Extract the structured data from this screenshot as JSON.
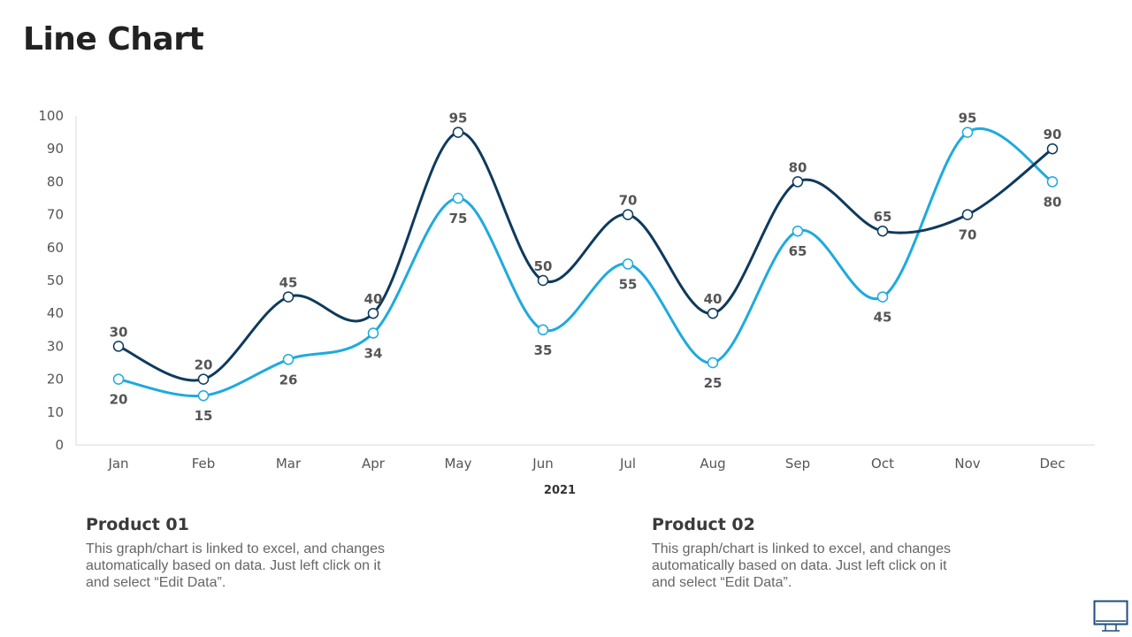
{
  "page": {
    "title": "Line Chart"
  },
  "chart_data": {
    "type": "line",
    "categories": [
      "Jan",
      "Feb",
      "Mar",
      "Apr",
      "May",
      "Jun",
      "Jul",
      "Aug",
      "Sep",
      "Oct",
      "Nov",
      "Dec"
    ],
    "xlabel": "2021",
    "ylabel": "",
    "ylim": [
      0,
      100
    ],
    "yticks": [
      0,
      10,
      20,
      30,
      40,
      50,
      60,
      70,
      80,
      90,
      100
    ],
    "grid": false,
    "series": [
      {
        "values": [
          30,
          20,
          45,
          40,
          95,
          50,
          70,
          40,
          80,
          65,
          70,
          90
        ],
        "color": "#0e3a5c"
      },
      {
        "values": [
          20,
          15,
          26,
          34,
          75,
          35,
          55,
          25,
          65,
          45,
          95,
          80
        ],
        "color": "#1eaadd"
      }
    ]
  },
  "products": [
    {
      "title": "Product 01",
      "text": "This graph/chart is linked to excel, and changes automatically based on data. Just left click on it and select “Edit Data”."
    },
    {
      "title": "Product 02",
      "text": "This graph/chart is linked to excel, and changes automatically based on data. Just left click on it and select “Edit Data”."
    }
  ],
  "icons": {
    "corner": "monitor-icon"
  }
}
